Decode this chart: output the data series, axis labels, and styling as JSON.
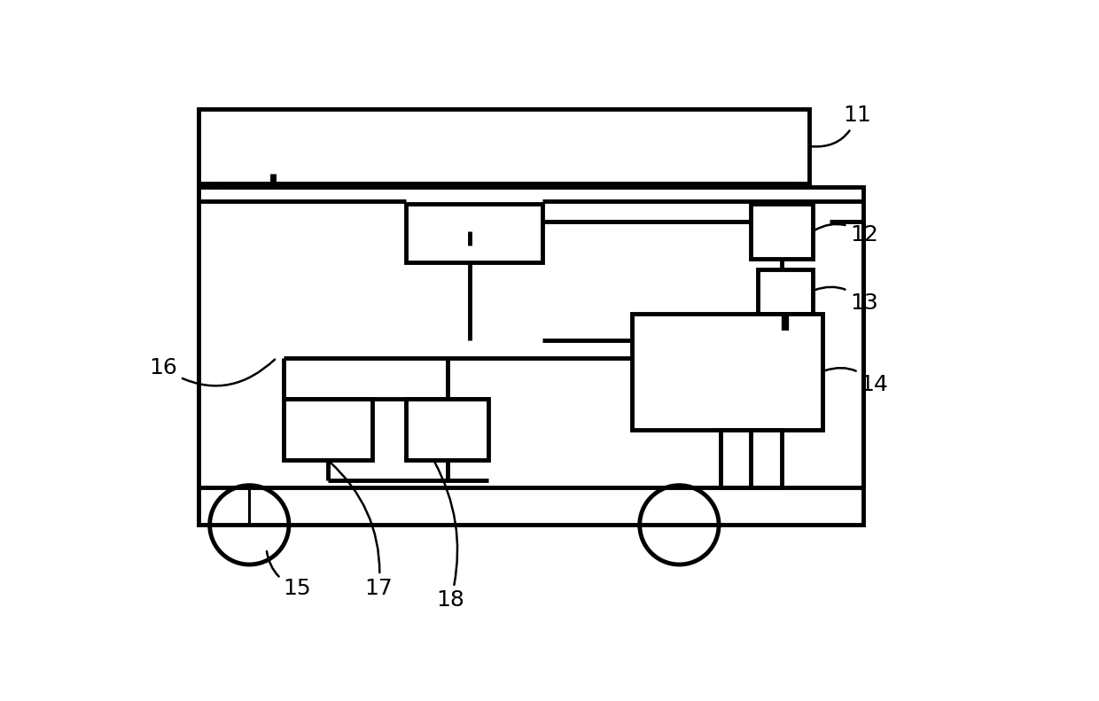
{
  "bg_color": "#ffffff",
  "line_color": "#000000",
  "lw": 2.2,
  "lw_thick": 3.5,
  "fig_width": 12.4,
  "fig_height": 7.91,
  "label_fontsize": 18
}
